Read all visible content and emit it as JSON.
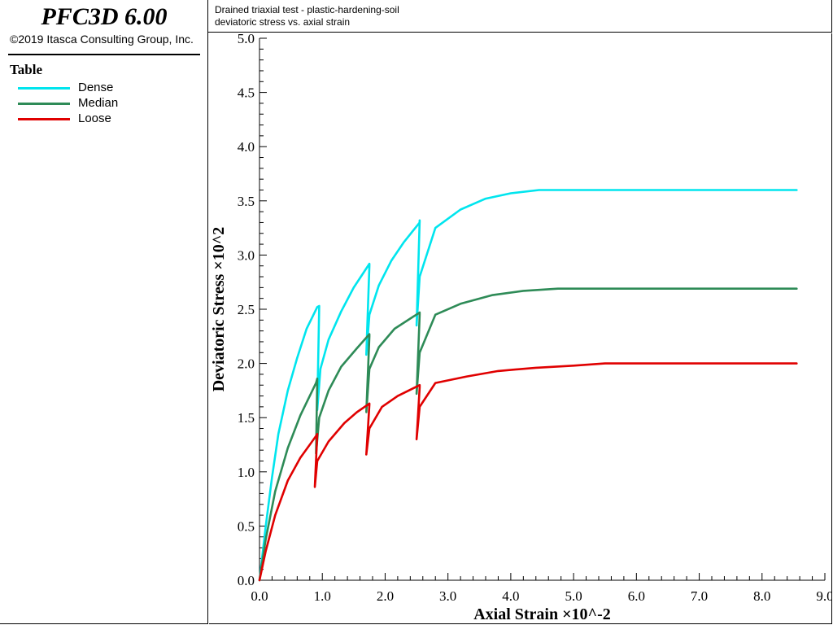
{
  "app": {
    "title": "PFC3D 6.00",
    "copyright": "©2019 Itasca Consulting Group, Inc."
  },
  "legend": {
    "title": "Table",
    "items": [
      {
        "label": "Dense",
        "color": "#00e5ee"
      },
      {
        "label": "Median",
        "color": "#2e8b57"
      },
      {
        "label": "Loose",
        "color": "#e00000"
      }
    ]
  },
  "header": {
    "line1": "Drained triaxial test - plastic-hardening-soil",
    "line2": "deviatoric stress vs. axial strain"
  },
  "chart_data": {
    "type": "line",
    "xlabel": "Axial Strain ×10^-2",
    "ylabel": "Deviatoric Stress ×10^2",
    "xlim": [
      0,
      9
    ],
    "ylim": [
      0,
      5
    ],
    "xticks": [
      "0.0",
      "1.0",
      "2.0",
      "3.0",
      "4.0",
      "5.0",
      "6.0",
      "7.0",
      "8.0",
      "9.0"
    ],
    "yticks": [
      "0.0",
      "0.5",
      "1.0",
      "1.5",
      "2.0",
      "2.5",
      "3.0",
      "3.5",
      "4.0",
      "4.5",
      "5.0"
    ],
    "grid": false,
    "legend_position": "left panel",
    "series": [
      {
        "name": "Dense",
        "color": "#00e5ee",
        "points": [
          [
            0,
            0
          ],
          [
            0.1,
            0.5
          ],
          [
            0.2,
            0.95
          ],
          [
            0.3,
            1.35
          ],
          [
            0.45,
            1.75
          ],
          [
            0.6,
            2.05
          ],
          [
            0.75,
            2.32
          ],
          [
            0.92,
            2.52
          ],
          [
            0.95,
            2.53
          ],
          [
            0.92,
            1.57
          ],
          [
            0.97,
            1.95
          ],
          [
            1.1,
            2.22
          ],
          [
            1.3,
            2.48
          ],
          [
            1.5,
            2.7
          ],
          [
            1.75,
            2.92
          ],
          [
            1.75,
            2.9
          ],
          [
            1.7,
            2.08
          ],
          [
            1.75,
            2.45
          ],
          [
            1.9,
            2.72
          ],
          [
            2.1,
            2.95
          ],
          [
            2.3,
            3.12
          ],
          [
            2.55,
            3.3
          ],
          [
            2.55,
            3.32
          ],
          [
            2.5,
            2.35
          ],
          [
            2.55,
            2.8
          ],
          [
            2.8,
            3.25
          ],
          [
            3.2,
            3.42
          ],
          [
            3.6,
            3.52
          ],
          [
            4.0,
            3.57
          ],
          [
            4.45,
            3.6
          ],
          [
            6.0,
            3.6
          ],
          [
            8.55,
            3.6
          ]
        ]
      },
      {
        "name": "Median",
        "color": "#2e8b57",
        "points": [
          [
            0,
            0
          ],
          [
            0.1,
            0.38
          ],
          [
            0.25,
            0.82
          ],
          [
            0.45,
            1.22
          ],
          [
            0.65,
            1.52
          ],
          [
            0.9,
            1.82
          ],
          [
            0.92,
            1.86
          ],
          [
            0.9,
            1.17
          ],
          [
            0.95,
            1.5
          ],
          [
            1.1,
            1.75
          ],
          [
            1.3,
            1.97
          ],
          [
            1.55,
            2.14
          ],
          [
            1.75,
            2.27
          ],
          [
            1.75,
            2.25
          ],
          [
            1.7,
            1.55
          ],
          [
            1.75,
            1.95
          ],
          [
            1.9,
            2.15
          ],
          [
            2.15,
            2.32
          ],
          [
            2.55,
            2.47
          ],
          [
            2.55,
            2.45
          ],
          [
            2.5,
            1.72
          ],
          [
            2.55,
            2.1
          ],
          [
            2.8,
            2.45
          ],
          [
            3.2,
            2.55
          ],
          [
            3.7,
            2.63
          ],
          [
            4.2,
            2.67
          ],
          [
            4.75,
            2.69
          ],
          [
            6.0,
            2.69
          ],
          [
            8.55,
            2.69
          ]
        ]
      },
      {
        "name": "Loose",
        "color": "#e00000",
        "points": [
          [
            0,
            0
          ],
          [
            0.1,
            0.27
          ],
          [
            0.25,
            0.6
          ],
          [
            0.45,
            0.92
          ],
          [
            0.65,
            1.13
          ],
          [
            0.9,
            1.33
          ],
          [
            0.92,
            1.35
          ],
          [
            0.88,
            0.86
          ],
          [
            0.92,
            1.1
          ],
          [
            1.1,
            1.28
          ],
          [
            1.35,
            1.45
          ],
          [
            1.55,
            1.55
          ],
          [
            1.75,
            1.63
          ],
          [
            1.75,
            1.62
          ],
          [
            1.7,
            1.16
          ],
          [
            1.75,
            1.4
          ],
          [
            1.95,
            1.6
          ],
          [
            2.2,
            1.7
          ],
          [
            2.55,
            1.8
          ],
          [
            2.55,
            1.78
          ],
          [
            2.5,
            1.3
          ],
          [
            2.55,
            1.6
          ],
          [
            2.8,
            1.82
          ],
          [
            3.3,
            1.88
          ],
          [
            3.8,
            1.93
          ],
          [
            4.4,
            1.96
          ],
          [
            5.0,
            1.98
          ],
          [
            5.5,
            2.0
          ],
          [
            7.0,
            2.0
          ],
          [
            8.55,
            2.0
          ]
        ]
      }
    ]
  }
}
